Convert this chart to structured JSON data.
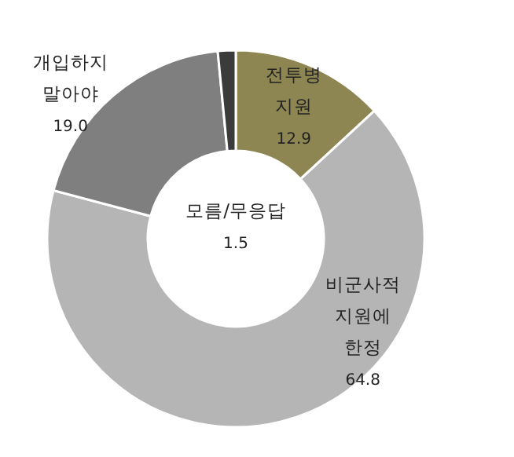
{
  "chart_data": {
    "type": "donut",
    "categories": [
      "전투병 지원",
      "비군사적 지원에 한정",
      "개입하지 말아야",
      "모름/무응답"
    ],
    "values": [
      12.9,
      64.8,
      19.0,
      1.5
    ],
    "value_labels": [
      "12.9",
      "64.8",
      "19.0",
      "1.5"
    ],
    "colors": [
      "#8e8652",
      "#b5b5b5",
      "#7f7f7f",
      "#3b3b3b"
    ]
  }
}
